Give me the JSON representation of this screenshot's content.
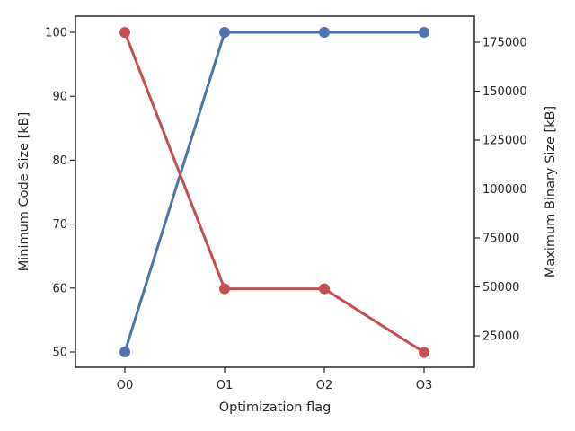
{
  "chart_data": {
    "type": "line",
    "categories": [
      "O0",
      "O1",
      "O2",
      "O3"
    ],
    "xlabel": "Optimization flag",
    "ylabel_left": "Minimum Code Size [kB]",
    "ylabel_right": "Maximum Binary Size [kB]",
    "left_ticks": [
      50,
      60,
      70,
      80,
      90,
      100
    ],
    "right_ticks": [
      25000,
      50000,
      75000,
      100000,
      125000,
      150000,
      175000
    ],
    "grid": false,
    "series": [
      {
        "axis": "left",
        "color": "#4c72b0",
        "values": [
          50,
          100,
          100,
          100
        ]
      },
      {
        "axis": "right",
        "color": "#c44e52",
        "values": [
          180000,
          49000,
          49000,
          16500
        ]
      }
    ]
  }
}
